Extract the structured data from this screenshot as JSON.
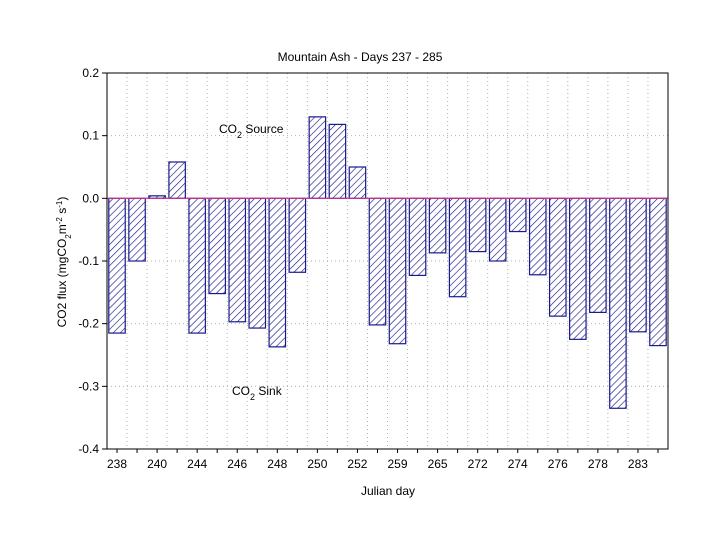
{
  "chart_data": {
    "type": "bar",
    "title": "Mountain Ash - Days 237 - 285",
    "xlabel": "Julian day",
    "ylabel": {
      "prefix": "CO2 flux (mgCO",
      "sub1": "2",
      "mid": "m",
      "sup1": "-2",
      "space": " s",
      "sup2": "-1",
      "suffix": ")"
    },
    "ylim": [
      -0.4,
      0.2
    ],
    "yticks": [
      "-0.4",
      "-0.3",
      "-0.2",
      "-0.1",
      "0.0",
      "0.1",
      "0.2"
    ],
    "ytick_values": [
      -0.4,
      -0.3,
      -0.2,
      -0.1,
      0.0,
      0.1,
      0.2
    ],
    "xtick_labels": [
      "238",
      "240",
      "244",
      "246",
      "248",
      "250",
      "252",
      "259",
      "265",
      "272",
      "274",
      "276",
      "278",
      "283"
    ],
    "bar_count": 28,
    "values": [
      -0.215,
      -0.1,
      0.004,
      0.058,
      -0.215,
      -0.152,
      -0.197,
      -0.207,
      -0.237,
      -0.118,
      0.13,
      0.118,
      0.05,
      -0.202,
      -0.232,
      -0.123,
      -0.087,
      -0.157,
      -0.085,
      -0.1,
      -0.053,
      -0.122,
      -0.188,
      -0.225,
      -0.182,
      -0.335,
      -0.213,
      -0.235
    ],
    "grid": true,
    "zero_line_color": "#d0308a",
    "bar_edge_color": "#1a1a8c",
    "annotations": {
      "source": {
        "prefix": "CO",
        "sub": "2",
        "suffix": " Source"
      },
      "sink": {
        "prefix": "CO",
        "sub": "2",
        "suffix": " Sink"
      }
    }
  }
}
